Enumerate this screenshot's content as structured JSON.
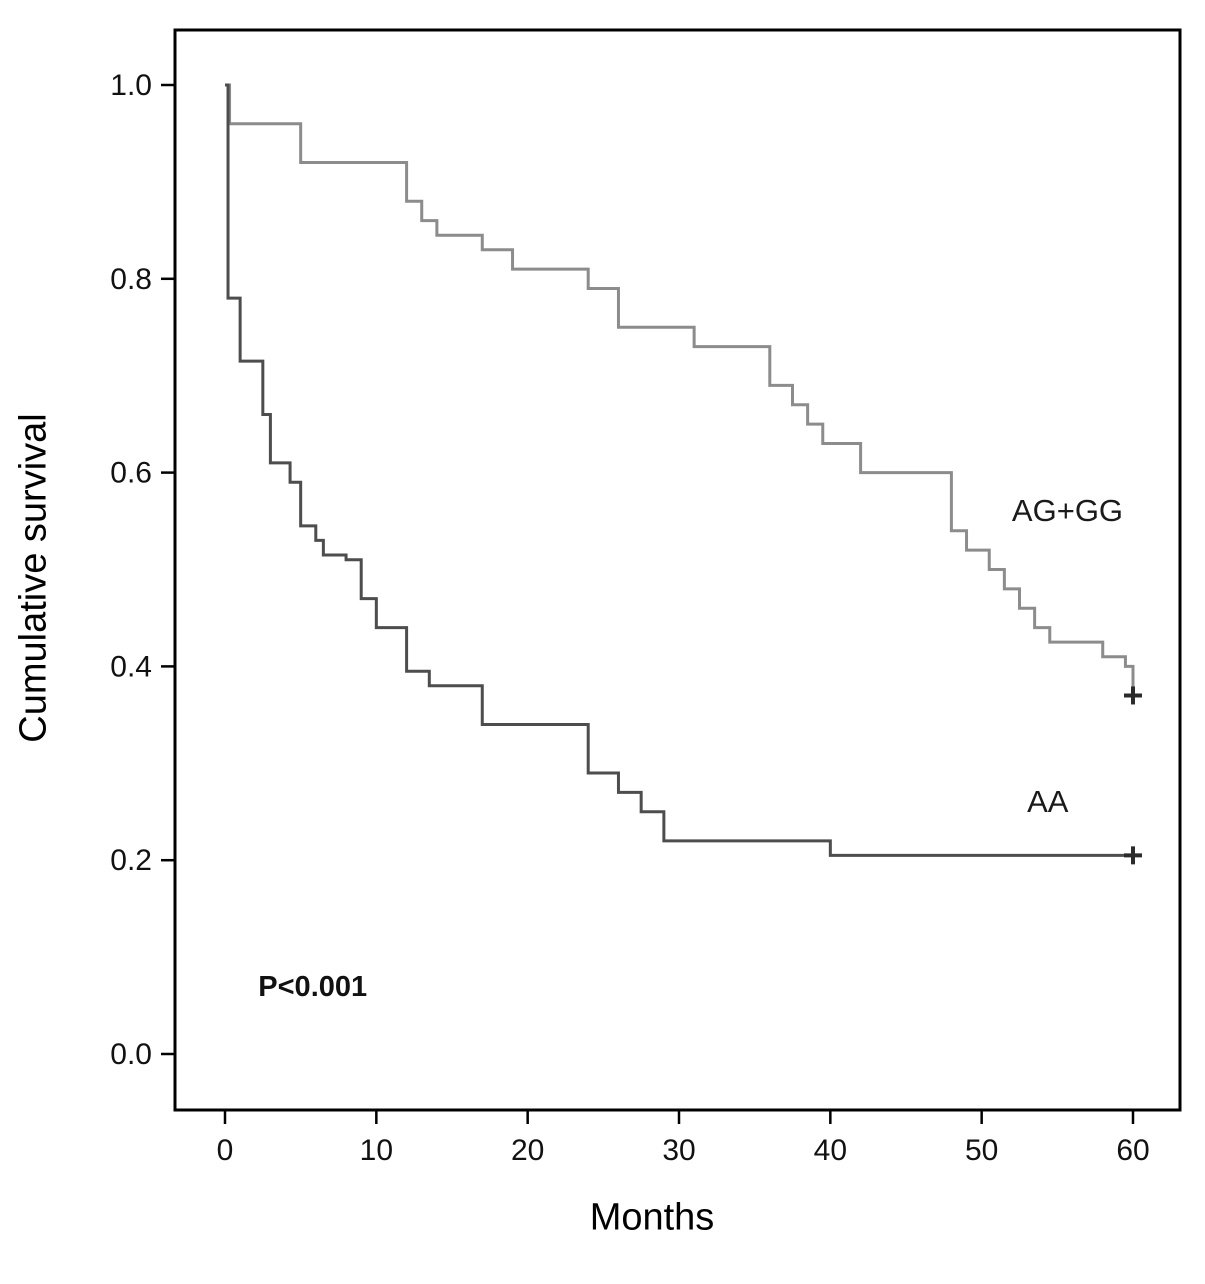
{
  "chart_data": {
    "type": "line",
    "subtype": "kaplan-meier-step",
    "title": "",
    "xlabel": "Months",
    "ylabel": "Cumulative survival",
    "xlim": [
      0,
      60
    ],
    "ylim": [
      0.0,
      1.0
    ],
    "grid": false,
    "legend_position": "inline-labels",
    "x_ticks": [
      0,
      10,
      20,
      30,
      40,
      50,
      60
    ],
    "y_ticks": [
      0.0,
      0.2,
      0.4,
      0.6,
      0.8,
      1.0
    ],
    "y_tick_labels": [
      "0.0",
      "0.2",
      "0.4",
      "0.6",
      "0.8",
      "1.0"
    ],
    "annotation": {
      "text": "P<0.001",
      "x": 2.2,
      "y": 0.06
    },
    "series": [
      {
        "name": "AG+GG",
        "color": "#8c8c8c",
        "label_pos": {
          "x": 52,
          "y": 0.55
        },
        "censor_marks": [
          {
            "x": 60,
            "y": 0.37
          }
        ],
        "points": [
          [
            0,
            1.0
          ],
          [
            0.3,
            0.96
          ],
          [
            5,
            0.92
          ],
          [
            12,
            0.88
          ],
          [
            13,
            0.86
          ],
          [
            14,
            0.845
          ],
          [
            17,
            0.83
          ],
          [
            19,
            0.81
          ],
          [
            24,
            0.79
          ],
          [
            26,
            0.75
          ],
          [
            31,
            0.73
          ],
          [
            36,
            0.69
          ],
          [
            37.5,
            0.67
          ],
          [
            38.5,
            0.65
          ],
          [
            39.5,
            0.63
          ],
          [
            42,
            0.6
          ],
          [
            48,
            0.54
          ],
          [
            49,
            0.52
          ],
          [
            50.5,
            0.5
          ],
          [
            51.5,
            0.48
          ],
          [
            52.5,
            0.46
          ],
          [
            53.5,
            0.44
          ],
          [
            54.5,
            0.425
          ],
          [
            58,
            0.41
          ],
          [
            59.5,
            0.4
          ],
          [
            60,
            0.37
          ]
        ]
      },
      {
        "name": "AA",
        "color": "#4d4d4d",
        "label_pos": {
          "x": 53,
          "y": 0.25
        },
        "censor_marks": [
          {
            "x": 60,
            "y": 0.205
          }
        ],
        "points": [
          [
            0,
            1.0
          ],
          [
            0.2,
            0.78
          ],
          [
            1,
            0.715
          ],
          [
            2.5,
            0.66
          ],
          [
            3,
            0.61
          ],
          [
            4.3,
            0.59
          ],
          [
            5,
            0.545
          ],
          [
            6,
            0.53
          ],
          [
            6.5,
            0.515
          ],
          [
            8,
            0.51
          ],
          [
            9,
            0.47
          ],
          [
            10,
            0.44
          ],
          [
            12,
            0.395
          ],
          [
            13.5,
            0.38
          ],
          [
            17,
            0.34
          ],
          [
            24,
            0.29
          ],
          [
            26,
            0.27
          ],
          [
            27.5,
            0.25
          ],
          [
            29,
            0.22
          ],
          [
            40,
            0.205
          ],
          [
            60,
            0.205
          ]
        ]
      }
    ]
  }
}
